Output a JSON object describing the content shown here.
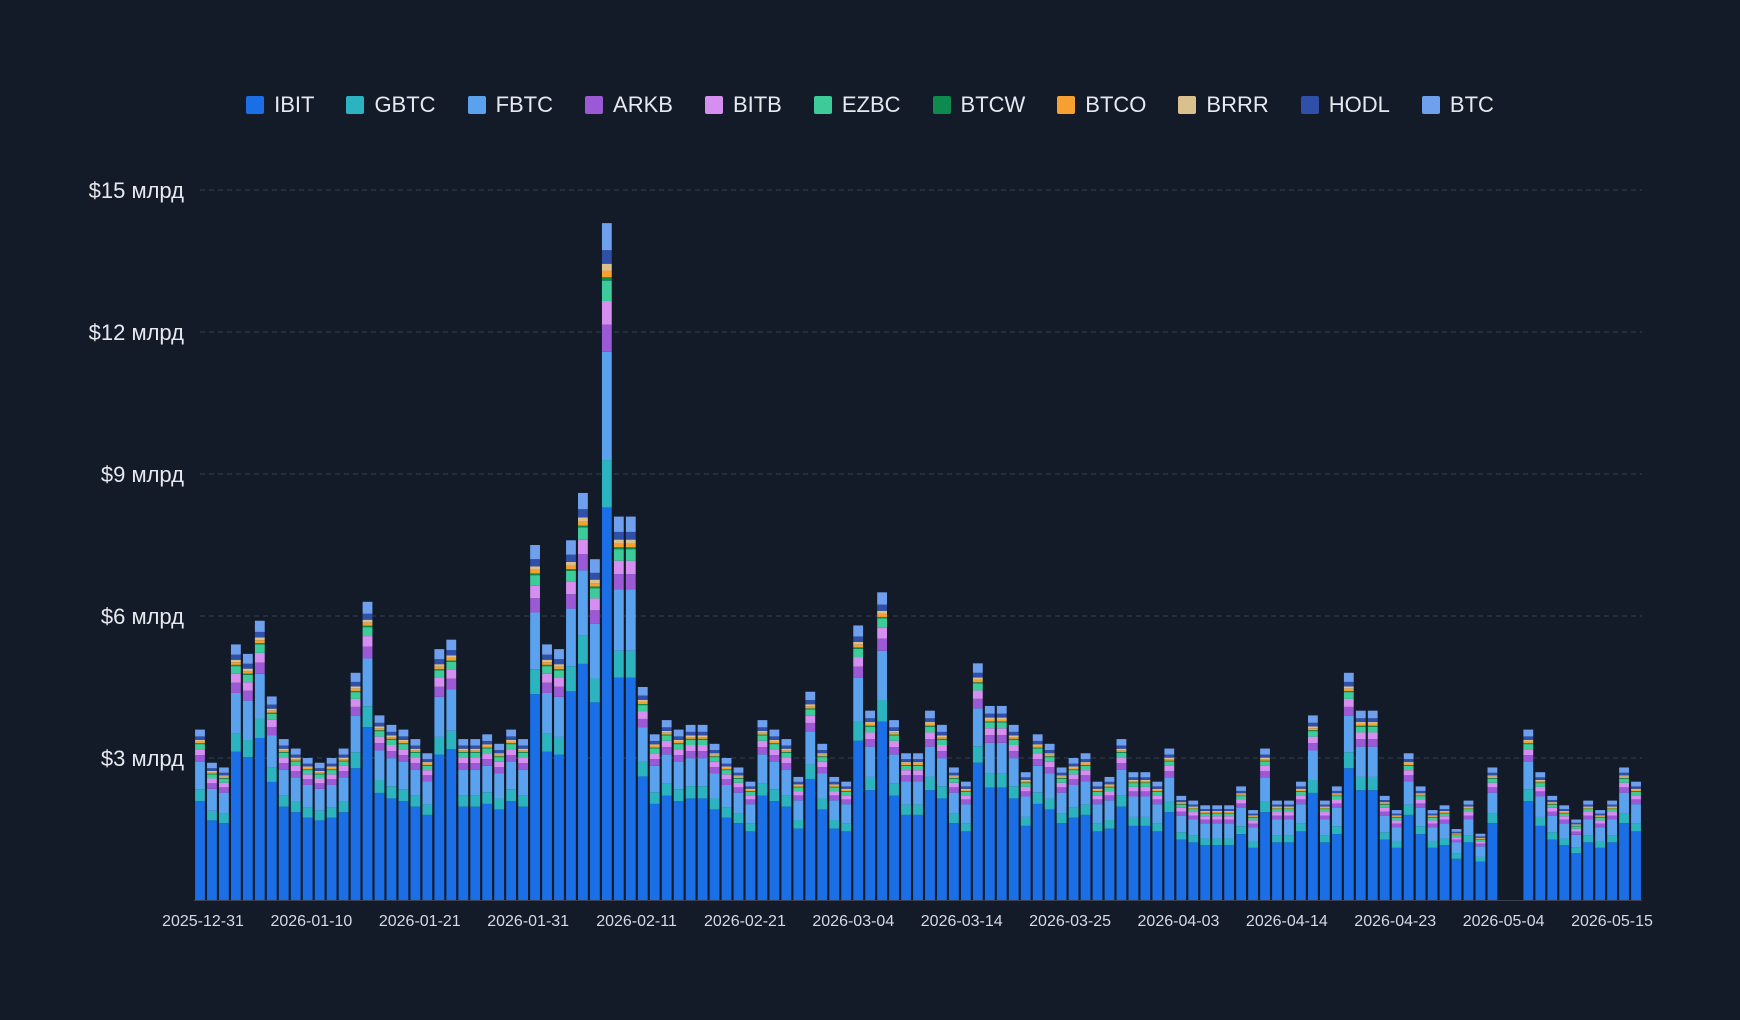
{
  "chart_data": {
    "type": "bar",
    "stacked": true,
    "title": "",
    "xlabel": "",
    "ylabel": "",
    "ylim": [
      0,
      15
    ],
    "y_unit": "млрд",
    "grid": true,
    "legend_position": "top-center",
    "y_ticks": [
      {
        "value": 3,
        "label": "$3 млрд"
      },
      {
        "value": 6,
        "label": "$6 млрд"
      },
      {
        "value": 9,
        "label": "$9 млрд"
      },
      {
        "value": 12,
        "label": "$12 млрд"
      },
      {
        "value": 15,
        "label": "$15 млрд"
      }
    ],
    "x_tick_labels": [
      "2025-12-31",
      "2026-01-10",
      "2026-01-21",
      "2026-01-31",
      "2026-02-11",
      "2026-02-21",
      "2026-03-04",
      "2026-03-14",
      "2026-03-25",
      "2026-04-03",
      "2026-04-14",
      "2026-04-23",
      "2026-05-04",
      "2026-05-15"
    ],
    "series": [
      {
        "name": "IBIT",
        "color": "#1a6ee6"
      },
      {
        "name": "GBTC",
        "color": "#2bb3c0"
      },
      {
        "name": "FBTC",
        "color": "#5aa2ee"
      },
      {
        "name": "ARKB",
        "color": "#9b59d6"
      },
      {
        "name": "BITB",
        "color": "#d68ef0"
      },
      {
        "name": "EZBC",
        "color": "#3ecb9a"
      },
      {
        "name": "BTCW",
        "color": "#0f8a4f"
      },
      {
        "name": "BTCO",
        "color": "#f5a030"
      },
      {
        "name": "BRRR",
        "color": "#d9c08c"
      },
      {
        "name": "HODL",
        "color": "#2f4fa8"
      },
      {
        "name": "BTC",
        "color": "#6fa0ee"
      }
    ],
    "share": [
      0.58,
      0.07,
      0.16,
      0.04,
      0.035,
      0.03,
      0.005,
      0.01,
      0.01,
      0.02,
      0.04
    ],
    "totals": [
      3.6,
      2.9,
      2.8,
      5.4,
      5.2,
      5.9,
      4.3,
      3.4,
      3.2,
      3.0,
      2.9,
      3.0,
      3.2,
      4.8,
      6.3,
      3.9,
      3.7,
      3.6,
      3.4,
      3.1,
      5.3,
      5.5,
      3.4,
      3.4,
      3.5,
      3.3,
      3.6,
      3.4,
      7.5,
      5.4,
      5.3,
      7.6,
      8.6,
      7.2,
      14.3,
      8.1,
      8.1,
      4.5,
      3.5,
      3.8,
      3.6,
      3.7,
      3.7,
      3.3,
      3.0,
      2.8,
      2.5,
      3.8,
      3.6,
      3.4,
      2.6,
      4.4,
      3.3,
      2.6,
      2.5,
      5.8,
      4.0,
      6.5,
      3.8,
      3.1,
      3.1,
      4.0,
      3.7,
      2.8,
      2.5,
      5.0,
      4.1,
      4.1,
      3.7,
      2.7,
      3.5,
      3.3,
      2.8,
      3.0,
      3.1,
      2.5,
      2.6,
      3.4,
      2.7,
      2.7,
      2.5,
      3.2,
      2.2,
      2.1,
      2.0,
      2.0,
      2.0,
      2.4,
      1.9,
      3.2,
      2.1,
      2.1,
      2.5,
      3.9,
      2.1,
      2.4,
      4.8,
      4.0,
      4.0,
      2.2,
      1.9,
      3.1,
      2.4,
      1.9,
      2.0,
      1.5,
      2.1,
      1.4,
      2.8,
      0,
      0,
      3.6,
      2.7,
      2.2,
      2.0,
      1.7,
      2.1,
      1.9,
      2.1,
      2.8,
      2.5
    ]
  }
}
